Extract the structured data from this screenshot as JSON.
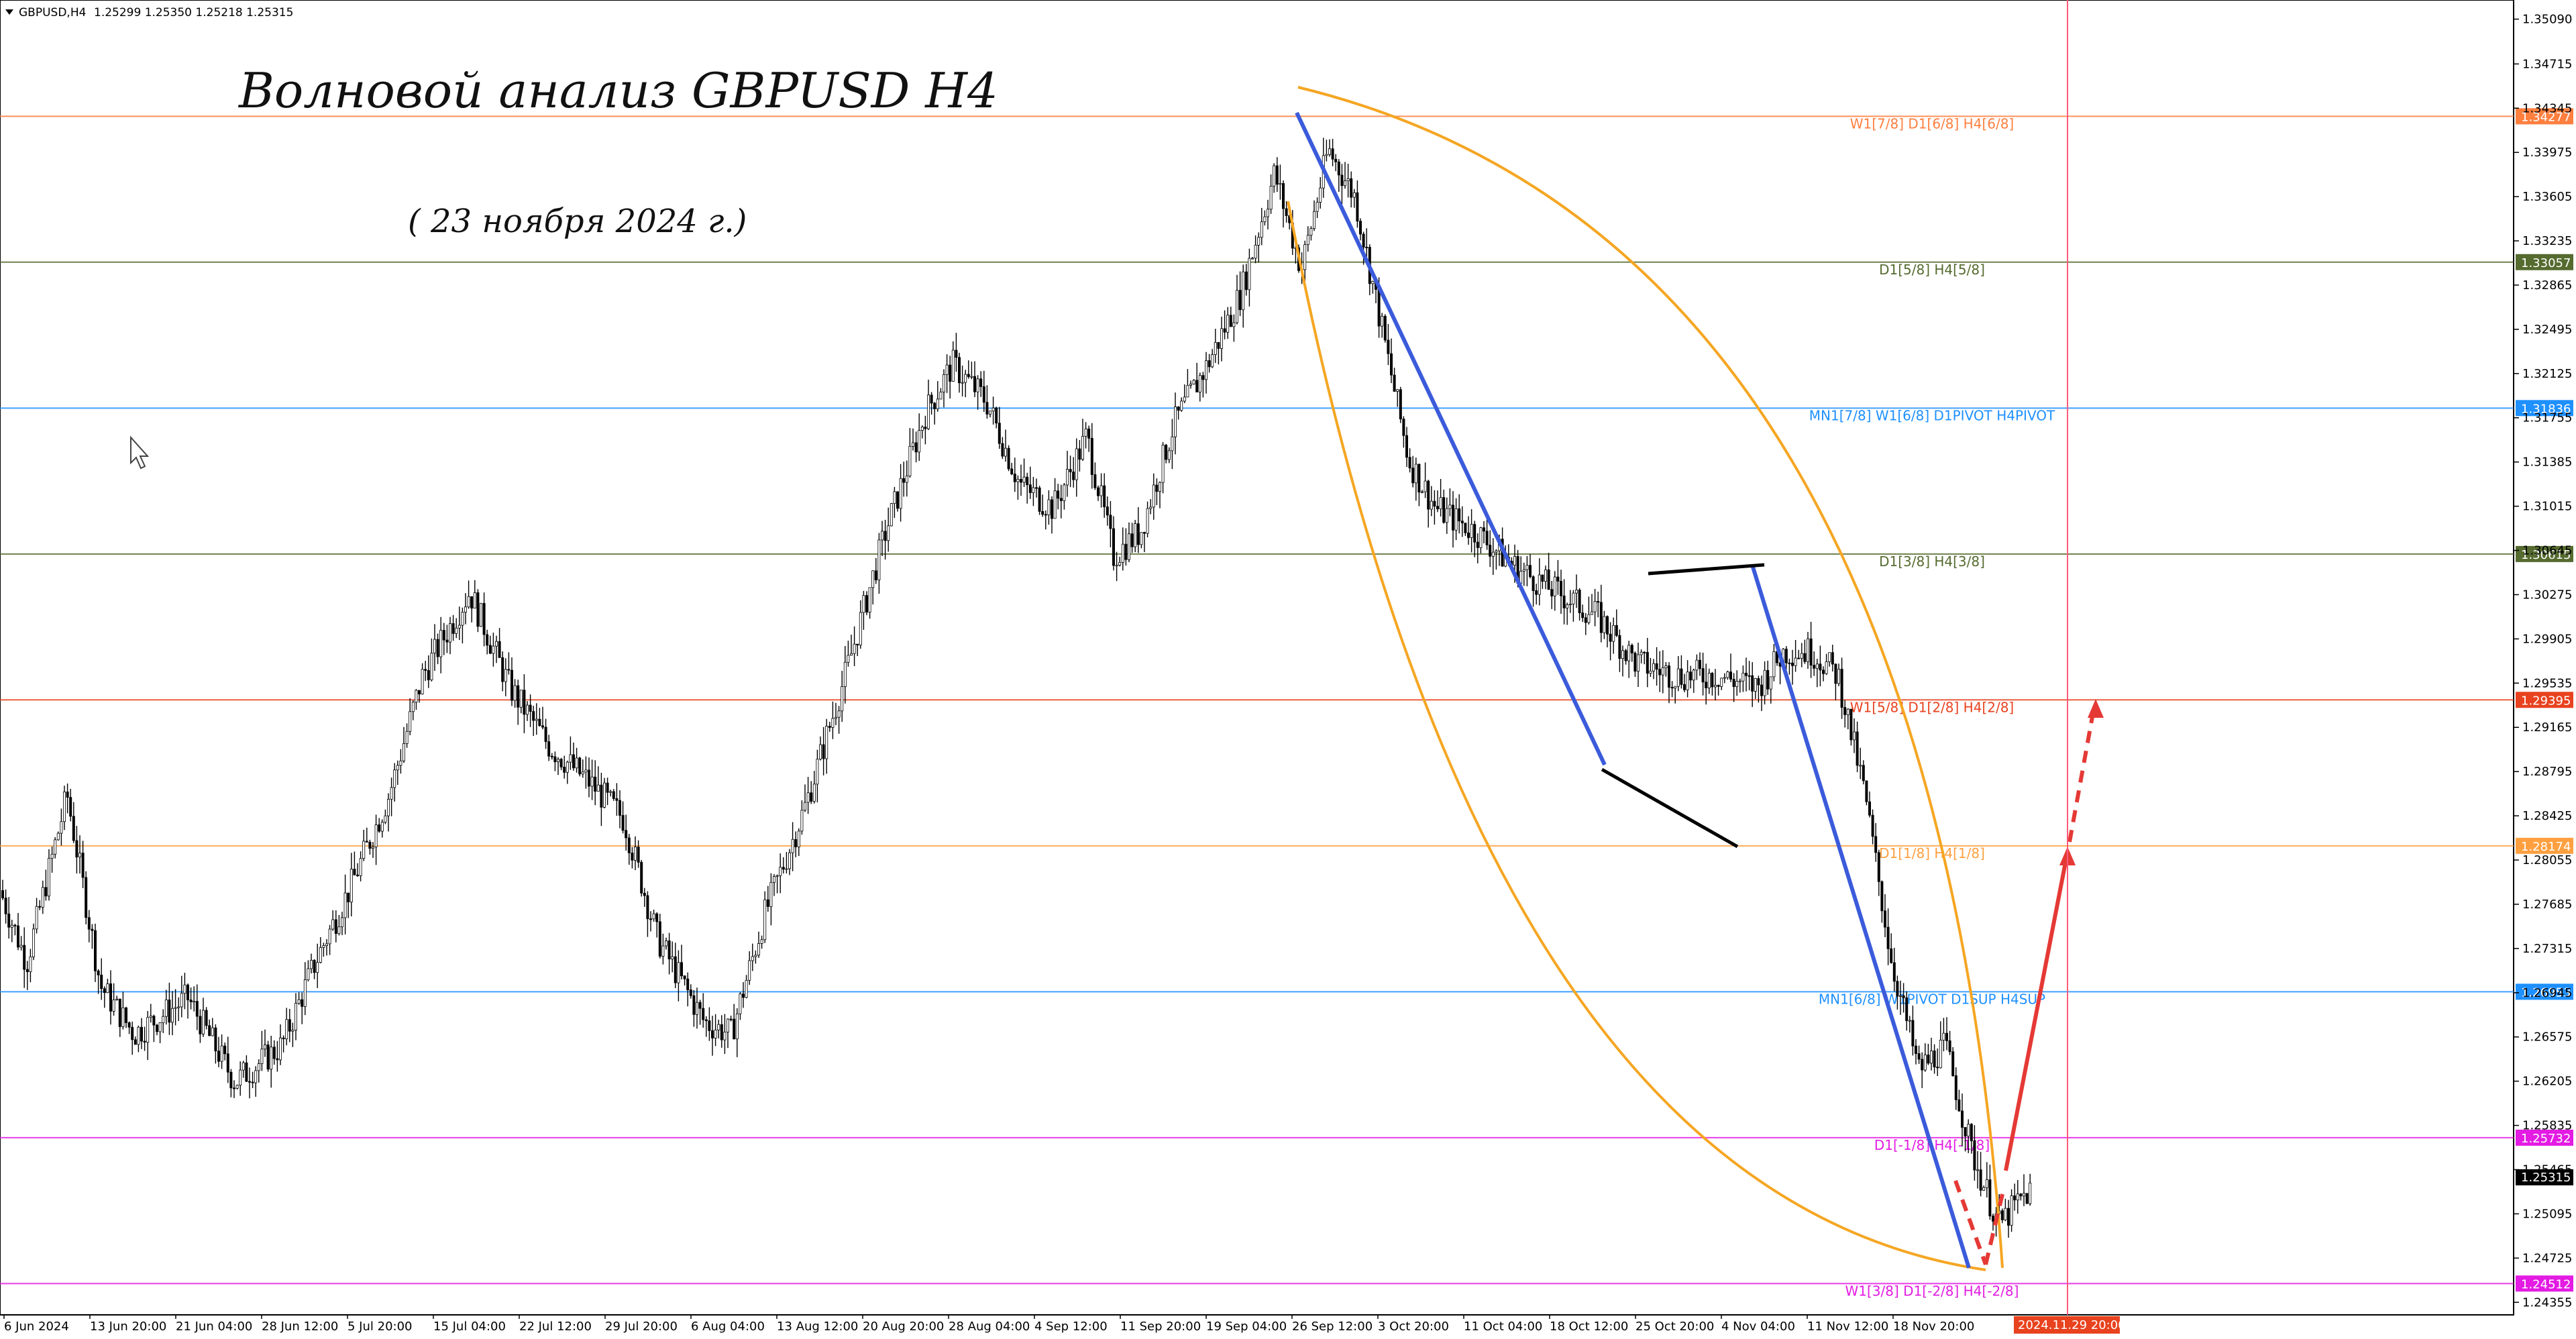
{
  "header": {
    "symbol": "GBPUSD,H4",
    "ohlc": "1.25299 1.25350 1.25218 1.25315"
  },
  "annotations": {
    "title": "Волновой анализ GBPUSD H4",
    "date": "( 23 ноября 2024 г.)"
  },
  "colors": {
    "orange": "#ff7f3f",
    "olive": "#556b2f",
    "blue": "#1e90ff",
    "light_orange": "#ffa040",
    "magenta": "#e31be3",
    "red_badge": "#e8421e",
    "arc": "#f5a623",
    "wave_blue": "#3b5bdb",
    "forecast_red": "#e53935"
  },
  "current_price": "1.25315",
  "current_time_label": "2024.11.29 20:00",
  "chart_data": {
    "type": "candlestick",
    "symbol": "GBPUSD",
    "timeframe": "H4",
    "ylim": [
      1.2425,
      1.3525
    ],
    "price_ticks": [
      "1.35090",
      "1.34715",
      "1.34345",
      "1.33975",
      "1.33605",
      "1.33235",
      "1.32865",
      "1.32495",
      "1.32125",
      "1.31755",
      "1.31385",
      "1.31015",
      "1.30645",
      "1.30275",
      "1.29905",
      "1.29535",
      "1.29165",
      "1.28795",
      "1.28425",
      "1.28055",
      "1.27685",
      "1.27315",
      "1.26945",
      "1.26575",
      "1.26205",
      "1.25835",
      "1.25465",
      "1.25095",
      "1.24725",
      "1.24355"
    ],
    "date_ticks": [
      "6 Jun 2024",
      "13 Jun 20:00",
      "21 Jun 04:00",
      "28 Jun 12:00",
      "5 Jul 20:00",
      "15 Jul 04:00",
      "22 Jul 12:00",
      "29 Jul 20:00",
      "6 Aug 04:00",
      "13 Aug 12:00",
      "20 Aug 20:00",
      "28 Aug 04:00",
      "4 Sep 12:00",
      "11 Sep 20:00",
      "19 Sep 04:00",
      "26 Sep 12:00",
      "3 Oct 20:00",
      "11 Oct 04:00",
      "18 Oct 12:00",
      "25 Oct 20:00",
      "4 Nov 04:00",
      "11 Nov 12:00",
      "18 Nov 20:00"
    ],
    "price_path": [
      [
        0,
        1.278
      ],
      [
        40,
        1.272
      ],
      [
        100,
        1.286
      ],
      [
        150,
        1.27
      ],
      [
        200,
        1.266
      ],
      [
        280,
        1.269
      ],
      [
        350,
        1.262
      ],
      [
        420,
        1.265
      ],
      [
        470,
        1.272
      ],
      [
        520,
        1.278
      ],
      [
        580,
        1.286
      ],
      [
        630,
        1.296
      ],
      [
        700,
        1.303
      ],
      [
        760,
        1.295
      ],
      [
        820,
        1.29
      ],
      [
        880,
        1.287
      ],
      [
        930,
        1.284
      ],
      [
        980,
        1.274
      ],
      [
        1050,
        1.267
      ],
      [
        1090,
        1.266
      ],
      [
        1140,
        1.276
      ],
      [
        1200,
        1.285
      ],
      [
        1260,
        1.296
      ],
      [
        1320,
        1.308
      ],
      [
        1380,
        1.318
      ],
      [
        1420,
        1.322
      ],
      [
        1470,
        1.319
      ],
      [
        1520,
        1.312
      ],
      [
        1570,
        1.31
      ],
      [
        1620,
        1.316
      ],
      [
        1660,
        1.306
      ],
      [
        1700,
        1.308
      ],
      [
        1750,
        1.317
      ],
      [
        1800,
        1.322
      ],
      [
        1850,
        1.328
      ],
      [
        1900,
        1.338
      ],
      [
        1940,
        1.33
      ],
      [
        1980,
        1.34
      ],
      [
        2020,
        1.336
      ],
      [
        2060,
        1.325
      ],
      [
        2100,
        1.314
      ],
      [
        2140,
        1.31
      ],
      [
        2200,
        1.308
      ],
      [
        2260,
        1.305
      ],
      [
        2320,
        1.303
      ],
      [
        2380,
        1.301
      ],
      [
        2440,
        1.297
      ],
      [
        2500,
        1.296
      ],
      [
        2560,
        1.296
      ],
      [
        2620,
        1.295
      ],
      [
        2660,
        1.298
      ],
      [
        2700,
        1.298
      ],
      [
        2740,
        1.296
      ],
      [
        2780,
        1.286
      ],
      [
        2820,
        1.272
      ],
      [
        2860,
        1.263
      ],
      [
        2900,
        1.265
      ],
      [
        2940,
        1.256
      ],
      [
        2980,
        1.25
      ],
      [
        3010,
        1.252
      ],
      [
        3030,
        1.2531
      ]
    ],
    "levels": [
      {
        "price": 1.34277,
        "label": "W1[7/8] D1[6/8] H4[6/8]",
        "price_label": "1.34277",
        "color": "#ff7f3f"
      },
      {
        "price": 1.33057,
        "label": "D1[5/8] H4[5/8]",
        "price_label": "1.33057",
        "color": "#556b2f"
      },
      {
        "price": 1.31836,
        "label": "MN1[7/8] W1[6/8] D1PIVOT H4PIVOT",
        "price_label": "1.31836",
        "color": "#1e90ff"
      },
      {
        "price": 1.30615,
        "label": "D1[3/8] H4[3/8]",
        "price_label": "1.30615",
        "color": "#556b2f"
      },
      {
        "price": 1.29395,
        "label": "W1[5/8] D1[2/8] H4[2/8]",
        "price_label": "1.29395",
        "color": "#e8421e"
      },
      {
        "price": 1.28174,
        "label": "D1[1/8] H4[1/8]",
        "price_label": "1.28174",
        "color": "#ffa040"
      },
      {
        "price": 1.26953,
        "label": "MN1[6/8] W1PIVOT D1SUP H4SUP",
        "price_label": "1.26953",
        "color": "#1e90ff"
      },
      {
        "price": 1.25732,
        "label": "D1[-1/8] H4[-1/8]",
        "price_label": "1.25732",
        "color": "#e31be3"
      },
      {
        "price": 1.24512,
        "label": "W1[3/8] D1[-2/8] H4[-2/8]",
        "price_label": "1.24512",
        "color": "#e31be3"
      }
    ]
  }
}
